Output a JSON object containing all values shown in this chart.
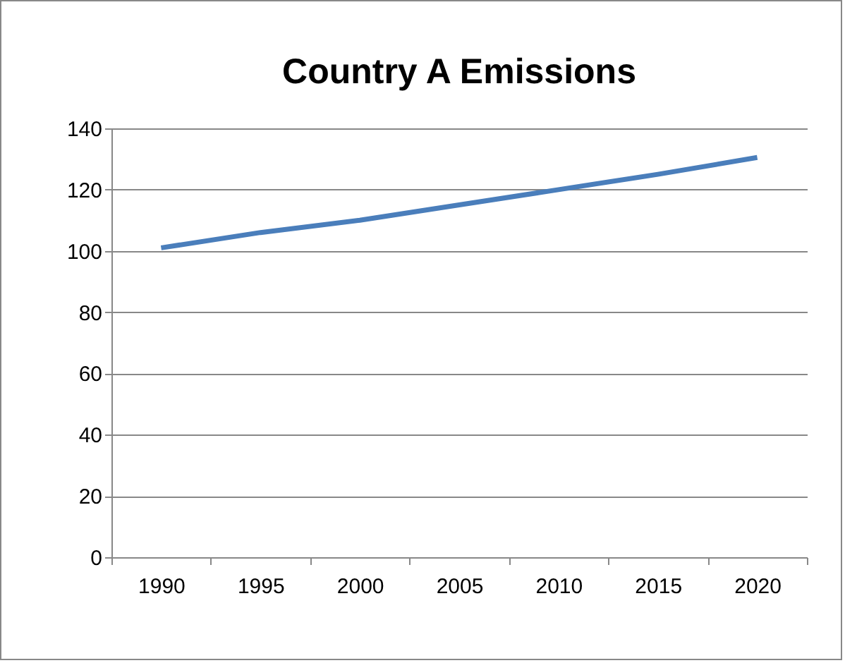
{
  "chart_data": {
    "type": "line",
    "title": "Country A Emissions",
    "categories": [
      "1990",
      "1995",
      "2000",
      "2005",
      "2010",
      "2015",
      "2020"
    ],
    "series": [
      {
        "color": "#4a7ebb",
        "values": [
          101,
          106,
          110,
          115,
          120,
          125,
          130.5
        ]
      }
    ],
    "ylim": [
      0,
      140
    ],
    "yticks": [
      0,
      20,
      40,
      60,
      80,
      100,
      120,
      140
    ],
    "grid": "y",
    "legend": false,
    "marker": "none",
    "line_style": "solid"
  }
}
